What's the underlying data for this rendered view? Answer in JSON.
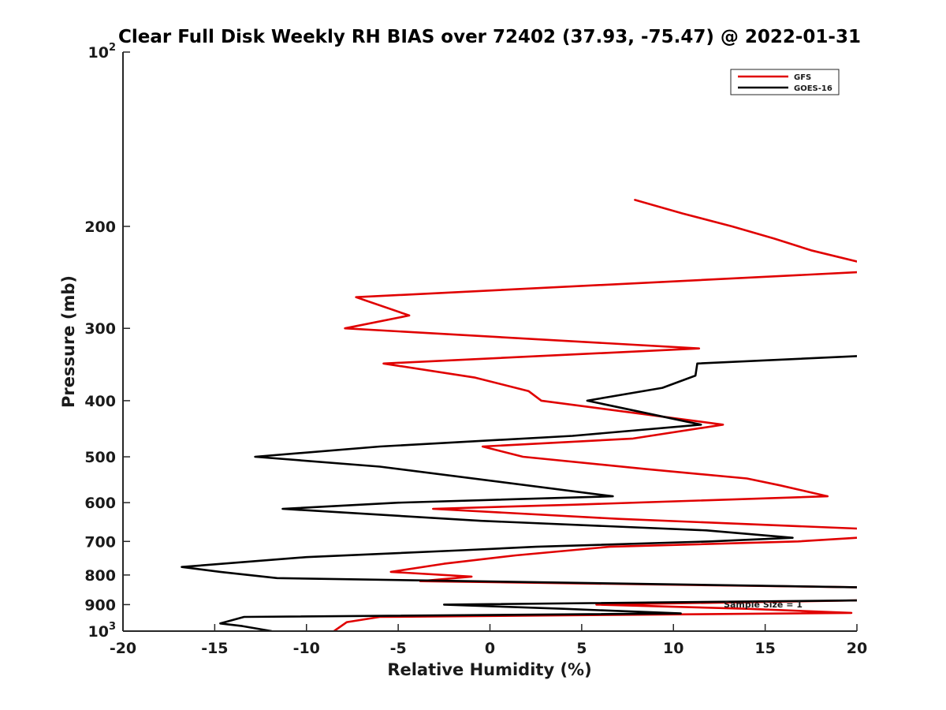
{
  "chart_data": {
    "type": "line",
    "title": "Clear Full Disk Weekly RH BIAS over 72402 (37.93, -75.47) @ 2022-01-31",
    "xlabel": "Relative Humidity (%)",
    "ylabel": "Pressure (mb)",
    "xlim": [
      -20,
      20
    ],
    "ylim": [
      100,
      1000
    ],
    "yscale": "log",
    "yreversed": true,
    "grid": false,
    "legend_position": "top-right",
    "x_ticks": [
      -20,
      -15,
      -10,
      -5,
      0,
      5,
      10,
      15,
      20
    ],
    "x_tick_labels": [
      "-20",
      "-15",
      "-10",
      "-5",
      "0",
      "5",
      "10",
      "15",
      "20"
    ],
    "y_ticks": [
      100,
      200,
      300,
      400,
      500,
      600,
      700,
      800,
      900,
      1000
    ],
    "y_tick_labels": [
      {
        "base": "10",
        "sup": "2"
      },
      {
        "base": "200",
        "sup": ""
      },
      {
        "base": "300",
        "sup": ""
      },
      {
        "base": "400",
        "sup": ""
      },
      {
        "base": "500",
        "sup": ""
      },
      {
        "base": "600",
        "sup": ""
      },
      {
        "base": "700",
        "sup": ""
      },
      {
        "base": "800",
        "sup": ""
      },
      {
        "base": "900",
        "sup": ""
      },
      {
        "base": "10",
        "sup": "3"
      }
    ],
    "annotation": "Sample Size = 1",
    "series": [
      {
        "name": "GFS",
        "color": "#e00000",
        "points": [
          [
            7.9,
            180
          ],
          [
            10.5,
            190
          ],
          [
            13.2,
            200
          ],
          [
            15.5,
            210
          ],
          [
            17.5,
            220
          ],
          [
            20,
            230
          ],
          [
            null,
            null
          ],
          [
            20,
            240
          ],
          [
            -7.3,
            265
          ],
          [
            -4.4,
            285
          ],
          [
            -7.9,
            300
          ],
          [
            11.4,
            325
          ],
          [
            -5.8,
            345
          ],
          [
            -0.8,
            365
          ],
          [
            2.1,
            385
          ],
          [
            2.8,
            400
          ],
          [
            12.7,
            440
          ],
          [
            7.8,
            465
          ],
          [
            -0.4,
            480
          ],
          [
            1.8,
            500
          ],
          [
            8.5,
            525
          ],
          [
            14.0,
            545
          ],
          [
            15.8,
            560
          ],
          [
            18.4,
            585
          ],
          [
            4.5,
            605
          ],
          [
            -3.1,
            615
          ],
          [
            7.0,
            640
          ],
          [
            20,
            665
          ],
          [
            null,
            null
          ],
          [
            20,
            690
          ],
          [
            16.8,
            700
          ],
          [
            6.5,
            715
          ],
          [
            1.4,
            740
          ],
          [
            -2.5,
            765
          ],
          [
            -5.4,
            790
          ],
          [
            -1.0,
            805
          ],
          [
            -3.8,
            820
          ],
          [
            20,
            840
          ],
          [
            null,
            null
          ],
          [
            20,
            885
          ],
          [
            5.8,
            900
          ],
          [
            14.0,
            915
          ],
          [
            19.7,
            930
          ],
          [
            -6.0,
            945
          ],
          [
            -7.8,
            965
          ],
          [
            -8.5,
            1000
          ]
        ]
      },
      {
        "name": "GOES-16",
        "color": "#000000",
        "points": [
          [
            20,
            335
          ],
          [
            11.3,
            345
          ],
          [
            11.2,
            362
          ],
          [
            9.4,
            380
          ],
          [
            5.3,
            400
          ],
          [
            11.5,
            440
          ],
          [
            4.5,
            460
          ],
          [
            -6.0,
            480
          ],
          [
            -12.8,
            500
          ],
          [
            -6.0,
            520
          ],
          [
            6.7,
            585
          ],
          [
            -5.0,
            600
          ],
          [
            -11.3,
            615
          ],
          [
            -0.5,
            645
          ],
          [
            11.8,
            670
          ],
          [
            16.5,
            690
          ],
          [
            12.0,
            700
          ],
          [
            2.5,
            715
          ],
          [
            -1.5,
            725
          ],
          [
            -10.0,
            745
          ],
          [
            -16.8,
            775
          ],
          [
            -14.7,
            790
          ],
          [
            -11.6,
            810
          ],
          [
            20,
            840
          ],
          [
            null,
            null
          ],
          [
            20,
            885
          ],
          [
            -2.5,
            900
          ],
          [
            4.0,
            915
          ],
          [
            10.4,
            932
          ],
          [
            -13.4,
            945
          ],
          [
            -14.7,
            970
          ],
          [
            -13.5,
            980
          ],
          [
            -11.9,
            1000
          ]
        ]
      }
    ]
  }
}
